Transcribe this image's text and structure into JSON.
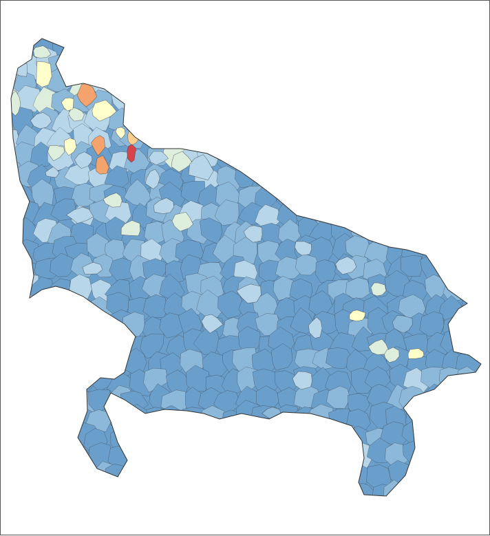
{
  "map": {
    "type": "choropleth",
    "region_unit": "sub-district",
    "palette": {
      "class_1": "#6a9ecb",
      "class_2": "#8cb8da",
      "class_3": "#b7d6ea",
      "class_4": "#ddeedd",
      "class_5": "#ffffcc",
      "class_6": "#fdcf8e",
      "class_7": "#f4a36c",
      "class_8": "#d7434a"
    },
    "border_color": "#333333",
    "frame_color": "#555555",
    "legend": null
  }
}
